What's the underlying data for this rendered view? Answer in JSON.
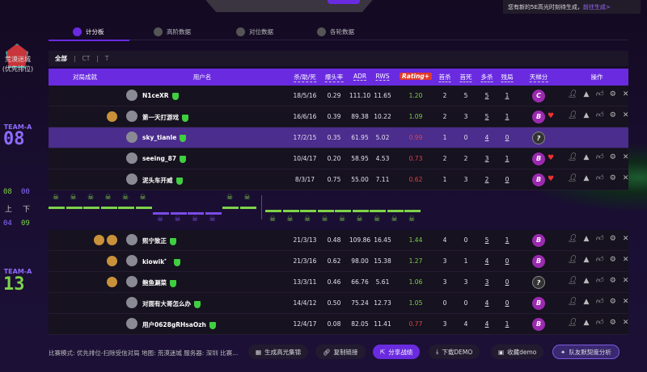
{
  "notice": {
    "text": "您有新的5E高光时刻待生成，",
    "link": "前往生成>"
  },
  "sidebar": {
    "map": "荒漠迷城",
    "mode": "(优先排位)",
    "team_top": "TEAM-A",
    "score_top": "08",
    "team_bottom": "TEAM-A",
    "score_bottom": "13",
    "half_scores": {
      "a1": "08",
      "b1": "00",
      "first": "上",
      "second": "下",
      "a2": "04",
      "b2": "09"
    }
  },
  "tabs": [
    {
      "label": "计分板",
      "icon": "scoreboard-icon",
      "active": true
    },
    {
      "label": "高阶数据",
      "icon": "shield-icon"
    },
    {
      "label": "对位数据",
      "icon": "versus-icon"
    },
    {
      "label": "各轮数据",
      "icon": "clock-icon"
    }
  ],
  "filter": [
    "全部",
    "CT",
    "T"
  ],
  "columns": {
    "achievements": "对局成就",
    "user": "用户名",
    "kad": "杀/助/死",
    "hs": "爆头率",
    "adr": "ADR",
    "rws": "RWS",
    "rating": "Rating+",
    "fk": "首杀",
    "fd": "首死",
    "multi": "多杀",
    "clutch": "残局",
    "ladder": "天梯分",
    "ops": "操作"
  },
  "team1": [
    {
      "name": "N1ceXR",
      "ach": 0,
      "kad": "18/5/16",
      "hs": "0.29",
      "adr": "111.10",
      "rws": "11.65",
      "rating": "1.20",
      "fk": "2",
      "fd": "5",
      "multi": "5",
      "clutch": "1",
      "rank": "C",
      "heart": false
    },
    {
      "name": "第一天打游戏",
      "ach": 1,
      "kad": "16/6/16",
      "hs": "0.39",
      "adr": "89.38",
      "rws": "10.22",
      "rating": "1.09",
      "fk": "2",
      "fd": "3",
      "multi": "5",
      "clutch": "1",
      "rank": "B",
      "heart": true
    },
    {
      "name": "sky_tianle",
      "ach": 0,
      "kad": "17/2/15",
      "hs": "0.35",
      "adr": "61.95",
      "rws": "5.02",
      "rating": "0.99",
      "fk": "1",
      "fd": "0",
      "multi": "4",
      "clutch": "0",
      "rank": "?",
      "heart": false,
      "self": true
    },
    {
      "name": "seeing_87",
      "ach": 0,
      "kad": "10/4/17",
      "hs": "0.20",
      "adr": "58.95",
      "rws": "4.53",
      "rating": "0.73",
      "fk": "2",
      "fd": "2",
      "multi": "3",
      "clutch": "1",
      "rank": "B",
      "heart": true
    },
    {
      "name": "泥头车开威",
      "ach": 0,
      "kad": "8/3/17",
      "hs": "0.75",
      "adr": "55.00",
      "rws": "7.11",
      "rating": "0.62",
      "fk": "1",
      "fd": "3",
      "multi": "2",
      "clutch": "0",
      "rank": "B",
      "heart": true
    }
  ],
  "team2": [
    {
      "name": "熙宁致正",
      "ach": 2,
      "kad": "21/3/13",
      "hs": "0.48",
      "adr": "109.86",
      "rws": "16.45",
      "rating": "1.44",
      "fk": "4",
      "fd": "0",
      "multi": "5",
      "clutch": "1",
      "rank": "B"
    },
    {
      "name": "kiowik゛",
      "ach": 1,
      "kad": "21/3/16",
      "hs": "0.62",
      "adr": "98.00",
      "rws": "15.38",
      "rating": "1.27",
      "fk": "3",
      "fd": "1",
      "multi": "4",
      "clutch": "0",
      "rank": "B"
    },
    {
      "name": "鲍鱼涮菜",
      "ach": 1,
      "kad": "13/3/11",
      "hs": "0.46",
      "adr": "66.76",
      "rws": "5.61",
      "rating": "1.06",
      "fk": "3",
      "fd": "3",
      "multi": "3",
      "clutch": "0",
      "rank": "?"
    },
    {
      "name": "对面有大哥怎么办",
      "ach": 0,
      "kad": "14/4/12",
      "hs": "0.50",
      "adr": "75.24",
      "rws": "12.73",
      "rating": "1.05",
      "fk": "0",
      "fd": "0",
      "multi": "4",
      "clutch": "0",
      "rank": "B"
    },
    {
      "name": "用户0628gRHsaOzh",
      "ach": 0,
      "kad": "12/4/17",
      "hs": "0.08",
      "adr": "82.05",
      "rws": "11.41",
      "rating": "0.77",
      "fk": "3",
      "fd": "4",
      "multi": "4",
      "clutch": "1",
      "rank": "B"
    }
  ],
  "rounds": [
    "A",
    "A",
    "A",
    "A",
    "A",
    "A",
    "B",
    "B",
    "B",
    "B",
    "A",
    "A",
    "B",
    "B",
    "B",
    "B",
    "B",
    "B",
    "B",
    "B",
    "B"
  ],
  "colors": {
    "accent": "#6a2be0",
    "teamA": "#7ed34a",
    "teamB": "#7b4be8"
  },
  "footer": {
    "info": "比赛模式: 优先排位-扫除受信对局 地图: 荒漠迷城 服务器: 深圳 比赛...",
    "buttons": [
      "生成高光集锦",
      "复制链接",
      "分享战绩",
      "下载DEMO",
      "收藏demo",
      "队友默契度分析"
    ]
  }
}
